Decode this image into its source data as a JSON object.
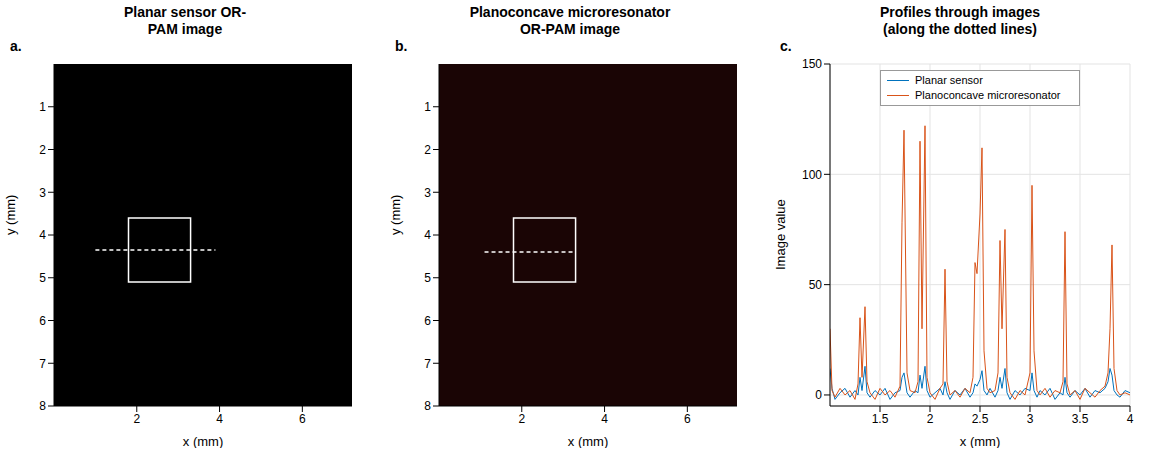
{
  "chart_data": [
    {
      "type": "image",
      "panel": "a.",
      "title": "Planar sensor OR-PAM image",
      "x_label": "x (mm)",
      "y_label": "y (mm)",
      "xlim": [
        0,
        7.2
      ],
      "ylim": [
        8,
        0
      ],
      "xticks": [
        2,
        4,
        6
      ],
      "yticks": [
        1,
        2,
        3,
        4,
        5,
        6,
        7,
        8
      ],
      "color": "#000000",
      "profile_line": {
        "x": [
          1,
          3.9
        ],
        "y": 4.35
      },
      "zoom_box": {
        "x": [
          1.8,
          3.3
        ],
        "y": [
          3.6,
          5.1
        ]
      }
    },
    {
      "type": "image",
      "panel": "b.",
      "title": "Planoconcave microresonator OR-PAM image",
      "x_label": "x (mm)",
      "y_label": "y (mm)",
      "xlim": [
        0,
        7.2
      ],
      "ylim": [
        8,
        0
      ],
      "xticks": [
        2,
        4,
        6
      ],
      "yticks": [
        1,
        2,
        3,
        4,
        5,
        6,
        7,
        8
      ],
      "color": "#1a0505",
      "profile_line": {
        "x": [
          1.1,
          3.3
        ],
        "y": 4.4
      },
      "zoom_box": {
        "x": [
          1.8,
          3.3
        ],
        "y": [
          3.6,
          5.1
        ]
      }
    },
    {
      "type": "line",
      "panel": "c.",
      "title": "Profiles through images (along the dotted lines)",
      "x_label": "x (mm)",
      "y_label": "Image value",
      "xlim": [
        1,
        4
      ],
      "ylim": [
        -5,
        150
      ],
      "xticks": [
        1.5,
        2,
        2.5,
        3,
        3.5,
        4
      ],
      "yticks": [
        0,
        50,
        100,
        150
      ],
      "grid": true,
      "legend": "upper center",
      "x": [
        1.0,
        1.02,
        1.05,
        1.1,
        1.15,
        1.2,
        1.25,
        1.28,
        1.3,
        1.32,
        1.35,
        1.37,
        1.4,
        1.45,
        1.5,
        1.55,
        1.6,
        1.65,
        1.7,
        1.72,
        1.74,
        1.77,
        1.8,
        1.85,
        1.88,
        1.9,
        1.92,
        1.95,
        1.97,
        2.0,
        2.05,
        2.1,
        2.13,
        2.15,
        2.17,
        2.2,
        2.25,
        2.3,
        2.35,
        2.4,
        2.43,
        2.45,
        2.47,
        2.5,
        2.52,
        2.54,
        2.57,
        2.6,
        2.65,
        2.68,
        2.7,
        2.72,
        2.75,
        2.77,
        2.8,
        2.85,
        2.9,
        2.95,
        3.0,
        3.02,
        3.04,
        3.07,
        3.1,
        3.15,
        3.2,
        3.25,
        3.3,
        3.33,
        3.35,
        3.37,
        3.4,
        3.45,
        3.5,
        3.55,
        3.6,
        3.65,
        3.7,
        3.75,
        3.78,
        3.8,
        3.82,
        3.84,
        3.87,
        3.9,
        3.95,
        4.0
      ],
      "series": [
        {
          "name": "Planar sensor",
          "color": "#0072bd",
          "values": [
            12,
            3,
            -2,
            1,
            3,
            -1,
            2,
            0,
            8,
            2,
            13,
            1,
            -1,
            2,
            0,
            3,
            -2,
            1,
            2,
            8,
            10,
            1,
            -1,
            2,
            1,
            9,
            3,
            13,
            2,
            -1,
            1,
            3,
            0,
            6,
            1,
            -2,
            2,
            0,
            3,
            -1,
            1,
            5,
            4,
            7,
            11,
            2,
            0,
            3,
            -1,
            2,
            8,
            3,
            12,
            1,
            -2,
            2,
            0,
            3,
            2,
            10,
            2,
            -1,
            2,
            0,
            3,
            -2,
            1,
            0,
            8,
            1,
            -1,
            2,
            0,
            3,
            -1,
            2,
            1,
            3,
            6,
            12,
            9,
            2,
            0,
            -1,
            2,
            1
          ]
        },
        {
          "name": "Planoconcave microresonator",
          "color": "#d95319",
          "values": [
            30,
            2,
            -1,
            3,
            0,
            2,
            -2,
            5,
            35,
            8,
            40,
            6,
            1,
            -2,
            3,
            0,
            2,
            -1,
            4,
            78,
            120,
            10,
            2,
            1,
            6,
            115,
            30,
            122,
            8,
            1,
            -2,
            3,
            5,
            57,
            6,
            0,
            2,
            -1,
            3,
            1,
            8,
            60,
            55,
            82,
            112,
            20,
            3,
            1,
            2,
            10,
            70,
            30,
            75,
            8,
            1,
            -2,
            2,
            0,
            10,
            95,
            20,
            2,
            0,
            3,
            -1,
            2,
            1,
            6,
            74,
            5,
            0,
            2,
            -2,
            3,
            1,
            -1,
            2,
            4,
            10,
            30,
            68,
            12,
            2,
            0,
            1,
            0
          ]
        }
      ]
    }
  ]
}
